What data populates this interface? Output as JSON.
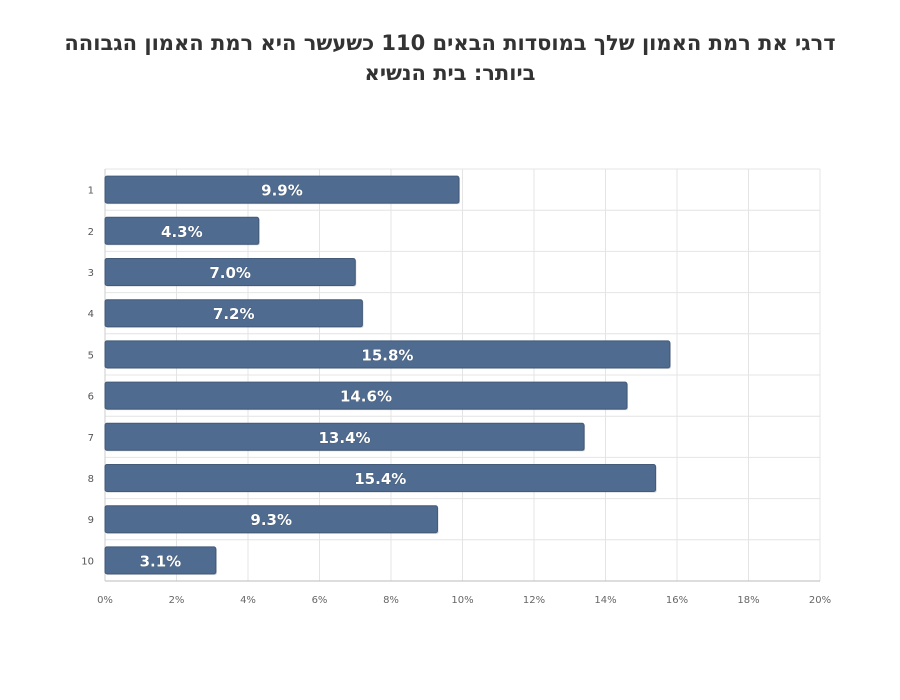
{
  "chart_data": {
    "type": "bar",
    "orientation": "horizontal",
    "title_lines": [
      "דרגי את רמת האמון שלך במוסדות הבאים 110 כשעשר היא רמת האמון הגבוהה",
      "ביותר: בית הנשיא"
    ],
    "categories": [
      "1",
      "2",
      "3",
      "4",
      "5",
      "6",
      "7",
      "8",
      "9",
      "10"
    ],
    "values": [
      9.9,
      4.3,
      7.0,
      7.2,
      15.8,
      14.6,
      13.4,
      15.4,
      9.3,
      3.1
    ],
    "value_labels": [
      "9.9%",
      "4.3%",
      "7.0%",
      "7.2%",
      "15.8%",
      "14.6%",
      "13.4%",
      "15.4%",
      "9.3%",
      "3.1%"
    ],
    "x_ticks": [
      "0%",
      "2%",
      "4%",
      "6%",
      "8%",
      "10%",
      "12%",
      "14%",
      "16%",
      "18%",
      "20%"
    ],
    "xlim": [
      0,
      20
    ],
    "xlabel": "",
    "ylabel": "",
    "grid": true,
    "bar_color": "#4f6b8f",
    "label_color": "#ffffff",
    "grid_color": "#e4e4e4"
  }
}
